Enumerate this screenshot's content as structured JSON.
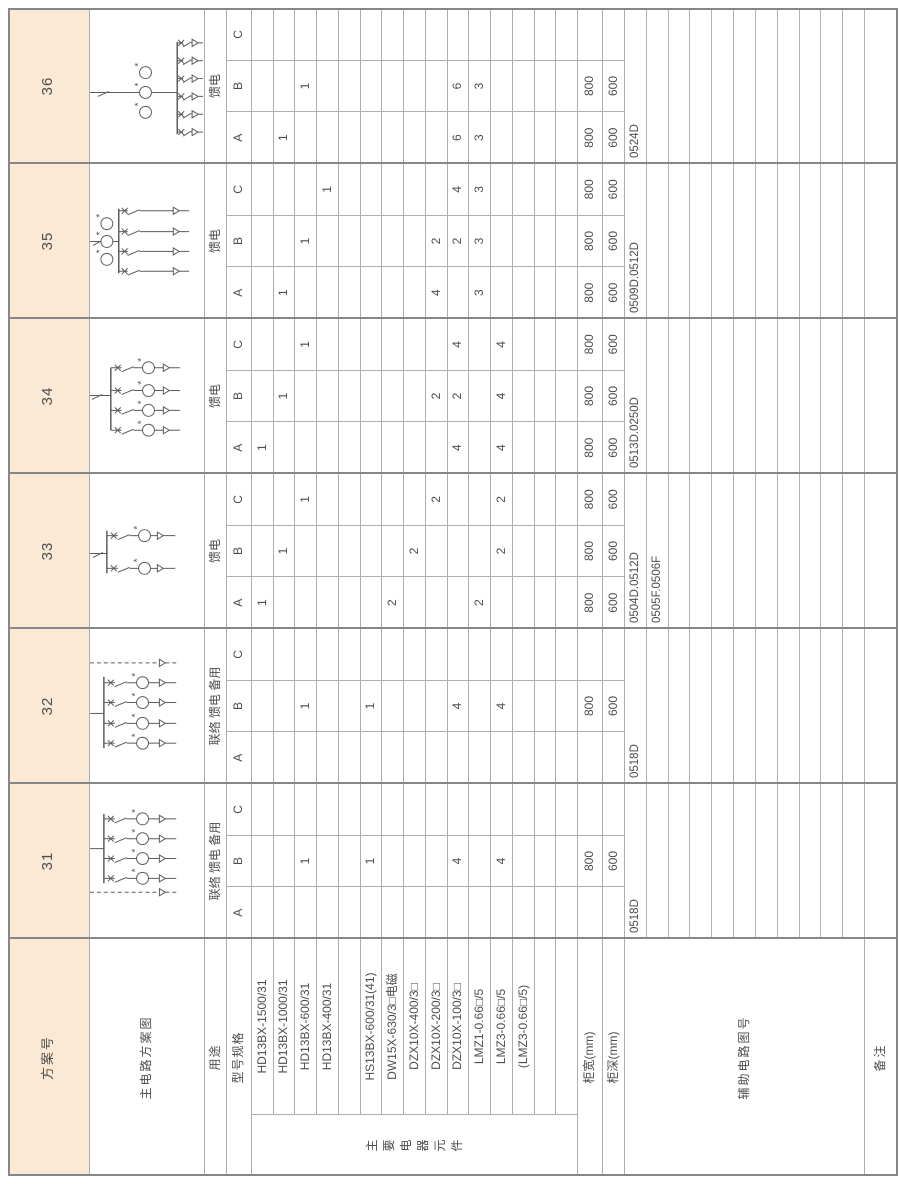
{
  "colors": {
    "accent_orange": "#fbe8d5",
    "grid_line": "#adadad",
    "strong_line": "#878787",
    "text": "#4d4d4d",
    "diagram_stroke": "#5c5c5c",
    "background": "#ffffff"
  },
  "header_column": {
    "scheme_no_label": "方案号",
    "diagram_label": "主电路方案图",
    "usage_label": "用途",
    "spec_label": "型号规格",
    "components_label": "主要电器元件",
    "cabinet_width_label": "柜宽(mm)",
    "cabinet_depth_label": "柜深(mm)",
    "aux_circuit_label": "辅助电路图号",
    "remark_label": "备注",
    "model_rows": [
      "HD13BX-1500/31",
      "HD13BX-1000/31",
      "HD13BX-600/31",
      "HD13BX-400/31",
      "",
      "HS13BX-600/31(41)",
      "DW15X-630/3□电磁",
      "DZX10X-400/3□",
      "DZX10X-200/3□",
      "DZX10X-100/3□",
      "LMZ1-0.66□/5",
      "LMZ3-0.66□/5",
      "(LMZ3-0.66□/5)",
      "",
      ""
    ]
  },
  "variant_headers": [
    "A",
    "B",
    "C"
  ],
  "schemes": [
    {
      "no": "31",
      "usage": "联络 馈电 备用",
      "diagram": {
        "type": "four-feeders-with-dashed-spare",
        "feeders": 4,
        "feeder_cts": true,
        "incoming_cts": 0,
        "spare_dashed_feeder": "left"
      },
      "values": {
        "A": [
          null,
          null,
          null,
          null,
          null,
          null,
          null,
          null,
          null,
          null,
          null,
          null,
          null,
          null,
          null
        ],
        "B": [
          null,
          null,
          "1",
          null,
          null,
          "1",
          null,
          null,
          null,
          "4",
          null,
          "4",
          null,
          null,
          null
        ],
        "C": [
          null,
          null,
          null,
          null,
          null,
          null,
          null,
          null,
          null,
          null,
          null,
          null,
          null,
          null,
          null
        ]
      },
      "cabinet_width": [
        null,
        "800",
        null
      ],
      "cabinet_depth": [
        null,
        "600",
        null
      ],
      "aux_numbers": [
        "0518D"
      ],
      "remark": ""
    },
    {
      "no": "32",
      "usage": "联络 馈电 备用",
      "diagram": {
        "type": "four-feeders-with-dashed-spare",
        "feeders": 4,
        "feeder_cts": true,
        "incoming_cts": 0,
        "spare_dashed_feeder": "right"
      },
      "values": {
        "A": [
          null,
          null,
          null,
          null,
          null,
          null,
          null,
          null,
          null,
          null,
          null,
          null,
          null,
          null,
          null
        ],
        "B": [
          null,
          null,
          "1",
          null,
          null,
          "1",
          null,
          null,
          null,
          "4",
          null,
          "4",
          null,
          null,
          null
        ],
        "C": [
          null,
          null,
          null,
          null,
          null,
          null,
          null,
          null,
          null,
          null,
          null,
          null,
          null,
          null,
          null
        ]
      },
      "cabinet_width": [
        null,
        "800",
        null
      ],
      "cabinet_depth": [
        null,
        "600",
        null
      ],
      "aux_numbers": [
        "0518D"
      ],
      "remark": ""
    },
    {
      "no": "33",
      "usage": "馈电",
      "diagram": {
        "type": "two-feeders-ct-per-feeder",
        "feeders": 2,
        "feeder_cts": true,
        "incoming_cts": 0,
        "spare_dashed_feeder": null
      },
      "values": {
        "A": [
          "1",
          null,
          null,
          null,
          null,
          null,
          "2",
          null,
          null,
          null,
          "2",
          null,
          null,
          null,
          null
        ],
        "B": [
          null,
          "1",
          null,
          null,
          null,
          null,
          null,
          "2",
          null,
          null,
          null,
          "2",
          null,
          null,
          null
        ],
        "C": [
          null,
          null,
          "1",
          null,
          null,
          null,
          null,
          null,
          "2",
          null,
          null,
          "2",
          null,
          null,
          null
        ]
      },
      "cabinet_width": [
        "800",
        "800",
        "800"
      ],
      "cabinet_depth": [
        "600",
        "600",
        "600"
      ],
      "aux_numbers": [
        "0504D.0512D",
        "0505F.0506F"
      ],
      "remark": ""
    },
    {
      "no": "34",
      "usage": "馈电",
      "diagram": {
        "type": "four-feeders-ct-per-feeder",
        "feeders": 4,
        "feeder_cts": true,
        "incoming_cts": 0,
        "spare_dashed_feeder": null
      },
      "values": {
        "A": [
          "1",
          null,
          null,
          null,
          null,
          null,
          null,
          null,
          null,
          "4",
          null,
          "4",
          null,
          null,
          null
        ],
        "B": [
          null,
          "1",
          null,
          null,
          null,
          null,
          null,
          null,
          "2",
          "2",
          null,
          "4",
          null,
          null,
          null
        ],
        "C": [
          null,
          null,
          "1",
          null,
          null,
          null,
          null,
          null,
          null,
          "4",
          null,
          "4",
          null,
          null,
          null
        ]
      },
      "cabinet_width": [
        "800",
        "800",
        "800"
      ],
      "cabinet_depth": [
        "600",
        "600",
        "600"
      ],
      "aux_numbers": [
        "0513D.0250D"
      ],
      "remark": ""
    },
    {
      "no": "35",
      "usage": "馈电",
      "diagram": {
        "type": "four-feeders-incoming-cts",
        "feeders": 4,
        "feeder_cts": false,
        "incoming_cts": 3,
        "spare_dashed_feeder": null
      },
      "values": {
        "A": [
          null,
          "1",
          null,
          null,
          null,
          null,
          null,
          null,
          "4",
          null,
          "3",
          null,
          null,
          null,
          null
        ],
        "B": [
          null,
          null,
          "1",
          null,
          null,
          null,
          null,
          null,
          "2",
          "2",
          "3",
          null,
          null,
          null,
          null
        ],
        "C": [
          null,
          null,
          null,
          "1",
          null,
          null,
          null,
          null,
          null,
          "4",
          "3",
          null,
          null,
          null,
          null
        ]
      },
      "cabinet_width": [
        "800",
        "800",
        "800"
      ],
      "cabinet_depth": [
        "600",
        "600",
        "600"
      ],
      "aux_numbers": [
        "0509D.0512D"
      ],
      "remark": ""
    },
    {
      "no": "36",
      "usage": "馈电",
      "diagram": {
        "type": "six-feeders-incoming-cts",
        "feeders": 6,
        "feeder_cts": false,
        "incoming_cts": 3,
        "spare_dashed_feeder": null
      },
      "values": {
        "A": [
          null,
          "1",
          null,
          null,
          null,
          null,
          null,
          null,
          null,
          "6",
          "3",
          null,
          null,
          null,
          null
        ],
        "B": [
          null,
          null,
          "1",
          null,
          null,
          null,
          null,
          null,
          null,
          "6",
          "3",
          null,
          null,
          null,
          null
        ],
        "C": [
          null,
          null,
          null,
          null,
          null,
          null,
          null,
          null,
          null,
          null,
          null,
          null,
          null,
          null,
          null
        ]
      },
      "cabinet_width": [
        "800",
        "800",
        null
      ],
      "cabinet_depth": [
        "600",
        "600",
        null
      ],
      "aux_numbers": [
        "0524D"
      ],
      "remark": ""
    }
  ]
}
